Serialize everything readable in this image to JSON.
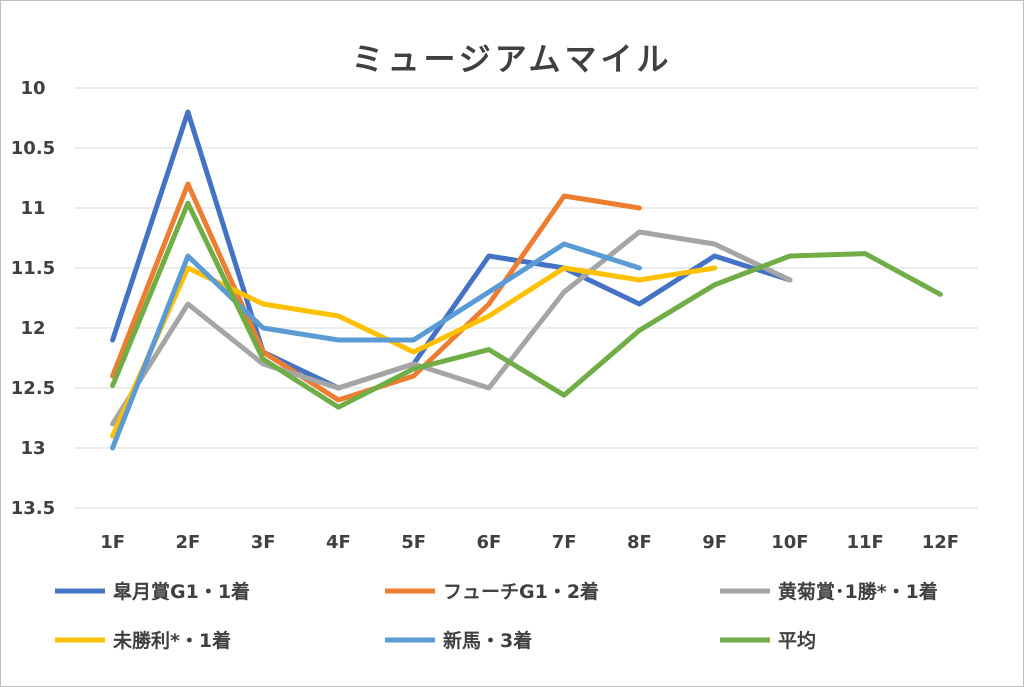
{
  "chart_data": {
    "type": "line",
    "title": "ミュージアムマイル",
    "categories": [
      "1F",
      "2F",
      "3F",
      "4F",
      "5F",
      "6F",
      "7F",
      "8F",
      "9F",
      "10F",
      "11F",
      "12F"
    ],
    "ylim": [
      10,
      13.5
    ],
    "y_inverted": true,
    "y_ticks": [
      "10",
      "10.5",
      "11",
      "11.5",
      "12",
      "12.5",
      "13",
      "13.5"
    ],
    "grid": true,
    "legend_position": "bottom",
    "series": [
      {
        "name": "皐月賞G1・1着",
        "color": "#4472c4",
        "values": [
          12.1,
          10.2,
          12.2,
          12.5,
          12.3,
          11.4,
          11.5,
          11.8,
          11.4,
          11.6,
          null,
          null
        ]
      },
      {
        "name": "フューチG1・2着",
        "color": "#ed7d31",
        "values": [
          12.4,
          10.8,
          12.2,
          12.6,
          12.4,
          11.8,
          10.9,
          11.0,
          null,
          null,
          null,
          null
        ]
      },
      {
        "name": "黄菊賞･1勝*・1着",
        "color": "#a5a5a5",
        "values": [
          12.8,
          11.8,
          12.3,
          12.5,
          12.3,
          12.5,
          11.7,
          11.2,
          11.3,
          11.6,
          null,
          null
        ]
      },
      {
        "name": "未勝利*・1着",
        "color": "#ffc000",
        "values": [
          12.9,
          11.5,
          11.8,
          11.9,
          12.2,
          11.9,
          11.5,
          11.6,
          11.5,
          null,
          null,
          null
        ]
      },
      {
        "name": "新馬・3着",
        "color": "#5b9bd5",
        "values": [
          13.0,
          11.4,
          12.0,
          12.1,
          12.1,
          11.7,
          11.3,
          11.5,
          null,
          null,
          null,
          null
        ]
      },
      {
        "name": "平均",
        "color": "#70ad47",
        "values": [
          12.48,
          10.96,
          12.26,
          12.66,
          12.34,
          12.18,
          12.56,
          12.02,
          11.64,
          11.4,
          11.38,
          11.72
        ]
      }
    ]
  }
}
